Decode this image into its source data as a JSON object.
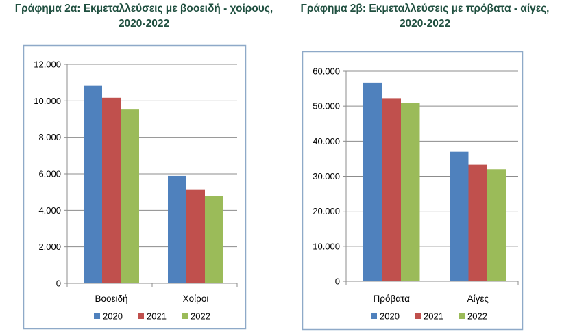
{
  "chart_data": [
    {
      "type": "bar",
      "title": [
        "Γράφημα 2α: Εκμεταλλεύσεις με βοοειδή - χοίρους,",
        "2020-2022"
      ],
      "categories": [
        "Βοοειδή",
        "Χοίροι"
      ],
      "series": [
        {
          "name": "2020",
          "values": [
            10850,
            5890
          ],
          "color": "#4f81bd"
        },
        {
          "name": "2021",
          "values": [
            10170,
            5150
          ],
          "color": "#c0504d"
        },
        {
          "name": "2022",
          "values": [
            9520,
            4780
          ],
          "color": "#9bbb59"
        }
      ],
      "ylim": [
        0,
        12000
      ],
      "yticks": [
        0,
        2000,
        4000,
        6000,
        8000,
        10000,
        12000
      ],
      "ytick_labels": [
        "0",
        "2.000",
        "4.000",
        "6.000",
        "8.000",
        "10.000",
        "12.000"
      ],
      "grid": true,
      "legend": "bottom",
      "xlabel": "",
      "ylabel": ""
    },
    {
      "type": "bar",
      "title": [
        "Γράφημα 2β: Εκμεταλλεύσεις με πρόβατα - αίγες,",
        "2020-2022"
      ],
      "categories": [
        "Πρόβατα",
        "Αίγες"
      ],
      "series": [
        {
          "name": "2020",
          "values": [
            56700,
            37000
          ],
          "color": "#4f81bd"
        },
        {
          "name": "2021",
          "values": [
            52300,
            33300
          ],
          "color": "#c0504d"
        },
        {
          "name": "2022",
          "values": [
            51000,
            32000
          ],
          "color": "#9bbb59"
        }
      ],
      "ylim": [
        0,
        60000
      ],
      "yticks": [
        0,
        10000,
        20000,
        30000,
        40000,
        50000,
        60000
      ],
      "ytick_labels": [
        "0",
        "10.000",
        "20.000",
        "30.000",
        "40.000",
        "50.000",
        "60.000"
      ],
      "grid": true,
      "legend": "bottom",
      "xlabel": "",
      "ylabel": ""
    }
  ]
}
